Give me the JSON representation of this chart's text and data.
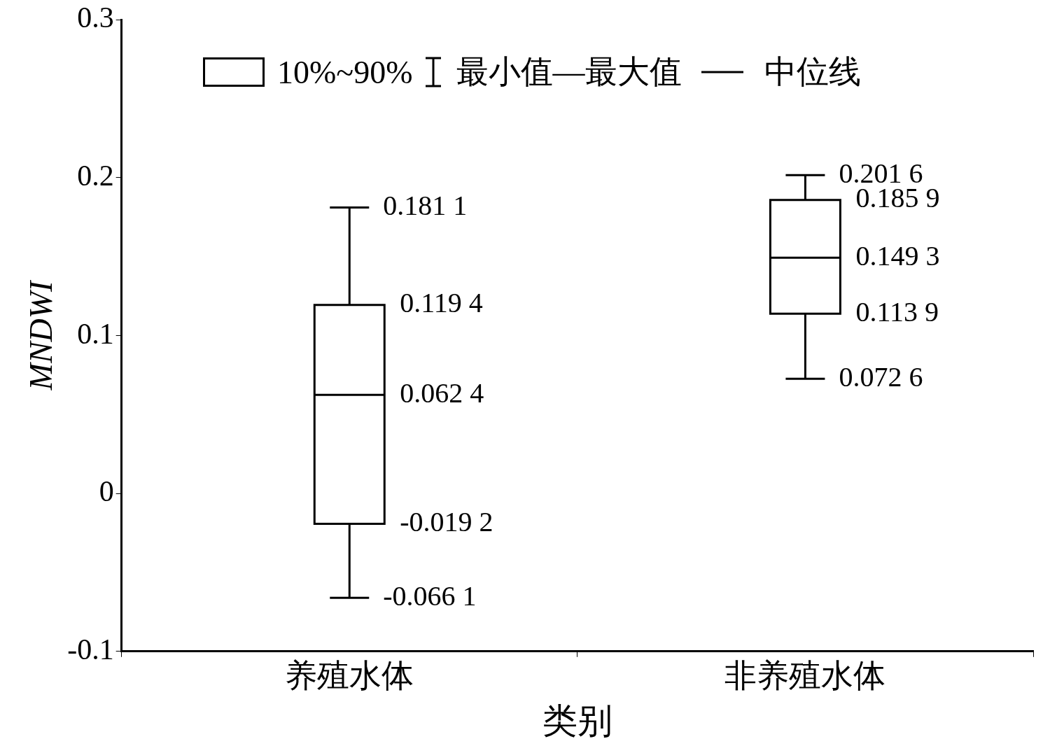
{
  "chart_data": {
    "type": "box",
    "xlabel": "类别",
    "ylabel": "MNDWI",
    "categories": [
      "养殖水体",
      "非养殖水体"
    ],
    "boxes": [
      {
        "low": -0.0661,
        "q1": -0.0192,
        "median": 0.0624,
        "q3": 0.1194,
        "high": 0.1811
      },
      {
        "low": 0.0726,
        "q1": 0.1139,
        "median": 0.1493,
        "q3": 0.1859,
        "high": 0.2016
      }
    ],
    "color": "#000000",
    "ylim": [
      -0.1,
      0.3
    ],
    "yticks": [
      -0.1,
      0,
      0.1,
      0.2,
      0.3
    ],
    "annotations": [
      "10%~90%",
      "最小值—最大值",
      "中位线",
      {
        "text": "0.181 1",
        "x": "养殖水体",
        "y": 0.1811
      },
      {
        "text": "0.119 4",
        "x": "养殖水体",
        "y": 0.1194
      },
      {
        "text": "0.062 4",
        "x": "养殖水体",
        "y": 0.0624
      },
      {
        "text": "-0.019 2",
        "x": "养殖水体",
        "y": -0.0192
      },
      {
        "text": "-0.066 1",
        "x": "养殖水体",
        "y": -0.0661
      },
      {
        "text": "0.201 6",
        "x": "非养殖水体",
        "y": 0.2016
      },
      {
        "text": "0.185 9",
        "x": "非养殖水体",
        "y": 0.1859
      },
      {
        "text": "0.149 3",
        "x": "非养殖水体",
        "y": 0.1493
      },
      {
        "text": "0.113 9",
        "x": "非养殖水体",
        "y": 0.1139
      },
      {
        "text": "0.072 6",
        "x": "非养殖水体",
        "y": 0.0726
      }
    ]
  }
}
